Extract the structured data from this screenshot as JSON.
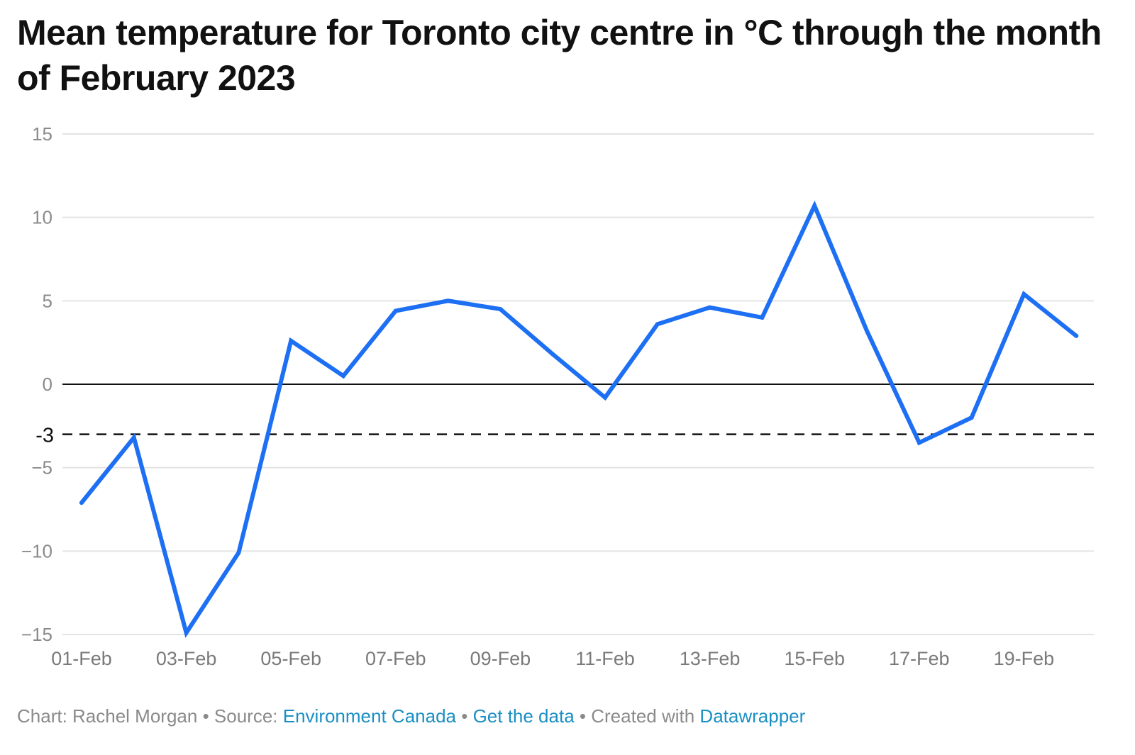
{
  "chart_data": {
    "type": "line",
    "title": "Mean temperature for Toronto city centre in °C through the month of February 2023",
    "x": [
      "01-Feb",
      "02-Feb",
      "03-Feb",
      "04-Feb",
      "05-Feb",
      "06-Feb",
      "07-Feb",
      "08-Feb",
      "09-Feb",
      "10-Feb",
      "11-Feb",
      "12-Feb",
      "13-Feb",
      "14-Feb",
      "15-Feb",
      "16-Feb",
      "17-Feb",
      "18-Feb",
      "19-Feb",
      "20-Feb"
    ],
    "x_tick_labels": [
      "01-Feb",
      "03-Feb",
      "05-Feb",
      "07-Feb",
      "09-Feb",
      "11-Feb",
      "13-Feb",
      "15-Feb",
      "17-Feb",
      "19-Feb"
    ],
    "series": [
      {
        "values": [
          -7.1,
          -3.2,
          -14.9,
          -10.1,
          2.6,
          0.5,
          4.4,
          5.0,
          4.5,
          1.8,
          -0.8,
          3.6,
          4.6,
          4.0,
          10.7,
          3.2,
          -3.5,
          -2.0,
          5.4,
          2.9
        ],
        "color": "#1d6ff3"
      }
    ],
    "ylim": [
      -15,
      15
    ],
    "y_ticks": [
      15,
      10,
      5,
      0,
      -5,
      -10,
      -15
    ],
    "y_tick_labels": [
      "15",
      "10",
      "5",
      "0",
      "−5",
      "−10",
      "−15"
    ],
    "xlabel": "",
    "ylabel": "",
    "grid": true,
    "zero_line": 0,
    "reference_lines": [
      {
        "value": -3,
        "label": "-3",
        "style": "dashed"
      }
    ]
  },
  "footer": {
    "chart_credit": "Chart: Rachel Morgan",
    "separator": " • ",
    "source_prefix": "Source: ",
    "source_name": "Environment Canada",
    "get_data": "Get the data",
    "created_with": "Created with ",
    "tool": "Datawrapper"
  },
  "colors": {
    "line": "#1d6ff3",
    "link": "#1a8fc4",
    "grid": "#e3e3e3",
    "muted_text": "#8a8a8a"
  }
}
